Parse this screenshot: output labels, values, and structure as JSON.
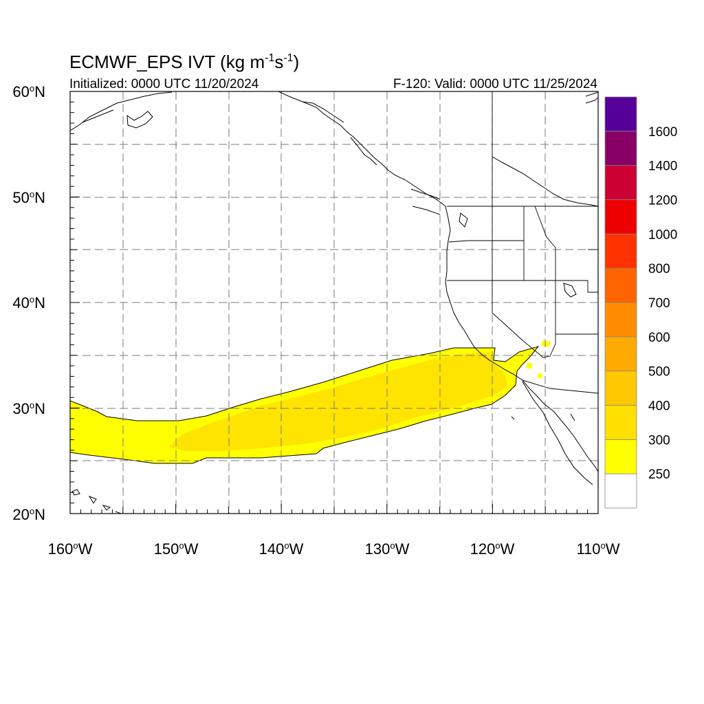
{
  "title": {
    "main": "ECMWF_EPS IVT (kg m",
    "sup1": "-1",
    "mid": "s",
    "sup2": "-1",
    "end": ")"
  },
  "subtitle_left": "Initialized: 0000 UTC 11/20/2024",
  "subtitle_right": "F-120: Valid: 0000 UTC 11/25/2024",
  "map": {
    "lon_range": [
      -160,
      -110
    ],
    "lat_range": [
      20,
      60
    ],
    "gridlines": "dashed",
    "grid_lon_step": 5,
    "grid_lat_step": 5
  },
  "lat_labels": [
    {
      "deg": "60",
      "hemi": "N"
    },
    {
      "deg": "50",
      "hemi": "N"
    },
    {
      "deg": "40",
      "hemi": "N"
    },
    {
      "deg": "30",
      "hemi": "N"
    },
    {
      "deg": "20",
      "hemi": "N"
    }
  ],
  "lon_labels": [
    {
      "deg": "160",
      "hemi": "W"
    },
    {
      "deg": "150",
      "hemi": "W"
    },
    {
      "deg": "140",
      "hemi": "W"
    },
    {
      "deg": "130",
      "hemi": "W"
    },
    {
      "deg": "120",
      "hemi": "W"
    },
    {
      "deg": "110",
      "hemi": "W"
    }
  ],
  "colorbar": {
    "levels": [
      "250",
      "300",
      "400",
      "500",
      "600",
      "700",
      "800",
      "1000",
      "1200",
      "1400",
      "1600"
    ],
    "colors": [
      "#ffffff",
      "#ffff00",
      "#ffe000",
      "#ffc800",
      "#ffaa00",
      "#ff8c00",
      "#ff6400",
      "#ff3200",
      "#ee0000",
      "#cc0033",
      "#880066",
      "#550099"
    ]
  },
  "ivt_field": {
    "band_color_low": "#ffff00",
    "band_color_mid": "#ffe400",
    "max_band_level": "300-400"
  }
}
